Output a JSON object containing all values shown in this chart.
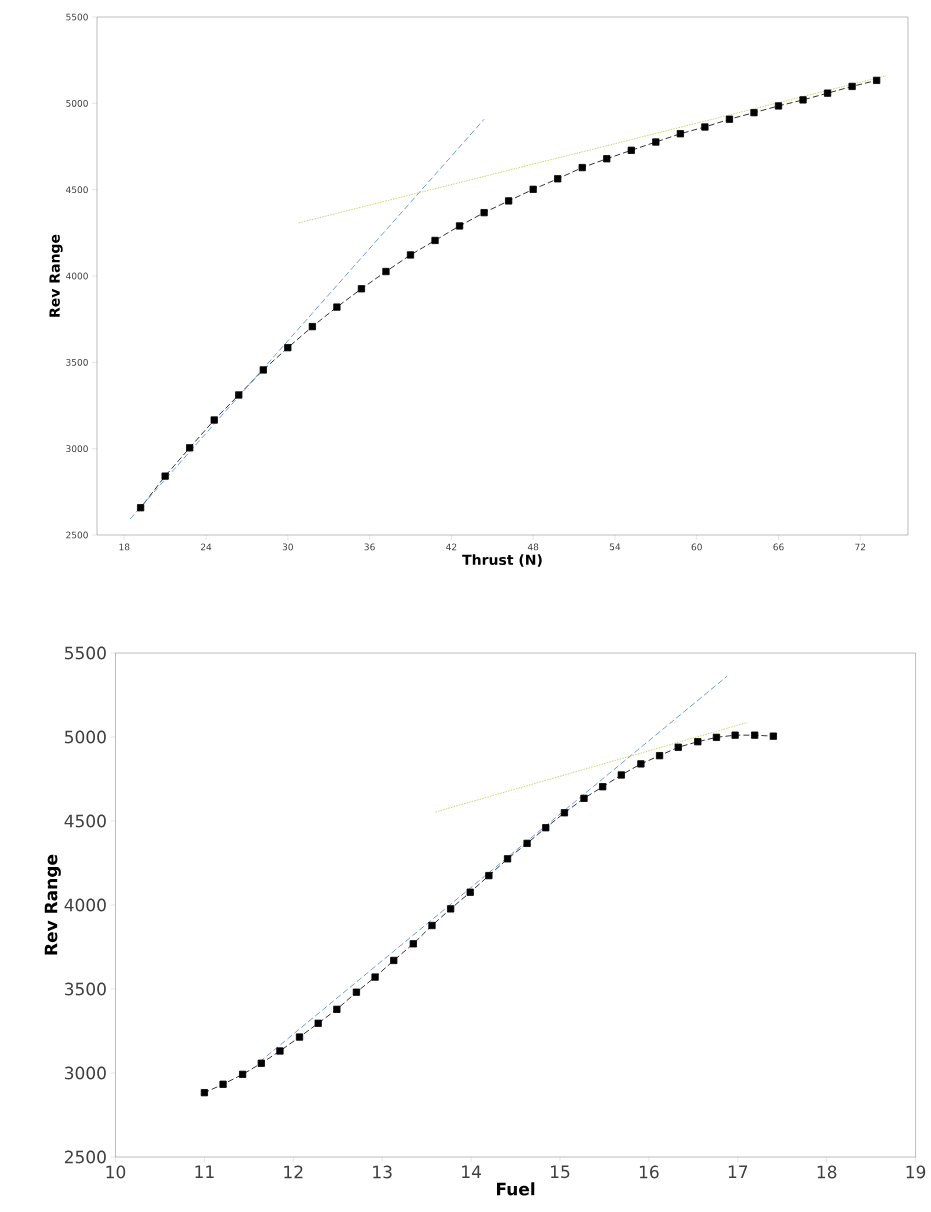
{
  "chart_data": [
    {
      "type": "line",
      "xlabel": "Thrust (N)",
      "ylabel": "Rev Range",
      "xlim": [
        16,
        75.5
      ],
      "ylim": [
        2500,
        5500
      ],
      "xticks": [
        18,
        24,
        30,
        36,
        42,
        48,
        54,
        60,
        66,
        72
      ],
      "yticks": [
        2500,
        3000,
        3500,
        4000,
        4500,
        5000,
        5500
      ],
      "marker": "square",
      "line_style": "dashed",
      "series": [
        {
          "color": "#000000",
          "x": [
            19.2,
            21,
            22.8,
            24.6,
            26.4,
            28.2,
            30,
            31.8,
            33.6,
            35.4,
            37.2,
            39,
            40.8,
            42.6,
            44.4,
            46.2,
            48,
            49.8,
            51.6,
            53.4,
            55.2,
            57,
            58.8,
            60.6,
            62.4,
            64.2,
            66,
            67.8,
            69.6,
            71.4,
            73.2
          ],
          "values": [
            2658,
            2841,
            3005,
            3166,
            3311,
            3456,
            3585,
            3707,
            3820,
            3926,
            4026,
            4122,
            4206,
            4290,
            4367,
            4435,
            4502,
            4563,
            4628,
            4679,
            4728,
            4776,
            4824,
            4863,
            4908,
            4946,
            4985,
            5020,
            5059,
            5098,
            5133
          ]
        },
        {
          "type": "line",
          "color": "#4a7fd4",
          "marker": "none",
          "line_style": "dashed",
          "x": [
            18.4,
            44.4
          ],
          "values": [
            2590,
            4908
          ]
        },
        {
          "type": "line",
          "color": "#b8c94a",
          "marker": "none",
          "line_style": "dotted",
          "x": [
            30.7,
            73.9
          ],
          "values": [
            4306,
            5160
          ]
        }
      ]
    },
    {
      "type": "line",
      "xlabel": "Fuel",
      "ylabel": "Rev Range",
      "xlim": [
        10,
        19
      ],
      "ylim": [
        2500,
        5500
      ],
      "xticks": [
        10,
        11,
        12,
        13,
        14,
        15,
        16,
        17,
        18,
        19
      ],
      "yticks": [
        2500,
        3000,
        3500,
        4000,
        4500,
        5000,
        5500
      ],
      "marker": "square",
      "line_style": "dashed",
      "series": [
        {
          "color": "#000000",
          "x": [
            11,
            11.21,
            11.43,
            11.64,
            11.85,
            12.07,
            12.28,
            12.49,
            12.71,
            12.92,
            13.13,
            13.35,
            13.56,
            13.77,
            13.99,
            14.2,
            14.41,
            14.63,
            14.84,
            15.05,
            15.27,
            15.48,
            15.69,
            15.91,
            16.12,
            16.33,
            16.55,
            16.76,
            16.97,
            17.19,
            17.4
          ],
          "values": [
            2883,
            2933,
            2992,
            3058,
            3131,
            3214,
            3296,
            3379,
            3481,
            3571,
            3670,
            3769,
            3878,
            3977,
            4076,
            4175,
            4275,
            4367,
            4460,
            4549,
            4635,
            4704,
            4774,
            4840,
            4889,
            4939,
            4972,
            4998,
            5011,
            5011,
            5005
          ]
        },
        {
          "type": "line",
          "color": "#4a7fd4",
          "marker": "none",
          "line_style": "dashed",
          "x": [
            11.63,
            16.88
          ],
          "values": [
            3070,
            5362
          ]
        },
        {
          "type": "line",
          "color": "#b8c94a",
          "marker": "none",
          "line_style": "dotted",
          "x": [
            13.59,
            17.11
          ],
          "values": [
            4552,
            5087
          ]
        }
      ]
    }
  ]
}
